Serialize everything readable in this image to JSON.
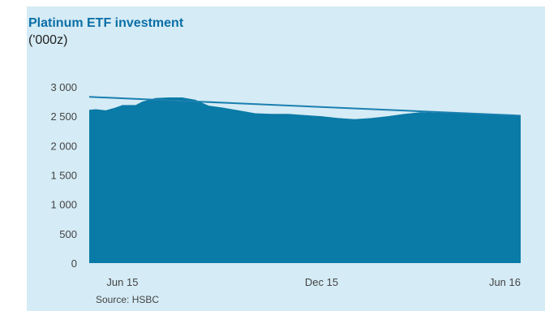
{
  "colors": {
    "panel_bg": "#d5ebf5",
    "area_fill": "#0a7aa6",
    "trend_line": "#1a7fb0",
    "title": "#0a6fa6"
  },
  "source": "Source: HSBC",
  "chart_data": {
    "type": "area",
    "title": "Platinum ETF investment",
    "subtitle": "('000z)",
    "xlabel": "",
    "ylabel": "",
    "ylim": [
      0,
      3000
    ],
    "yticks": [
      0,
      500,
      1000,
      1500,
      2000,
      2500,
      3000
    ],
    "ytick_labels": [
      "0",
      "500",
      "1 000",
      "1 500",
      "2 000",
      "2 500",
      "3 000"
    ],
    "xlim": [
      0,
      13
    ],
    "xtick_positions": [
      1,
      7,
      13
    ],
    "xtick_labels": [
      "Jun 15",
      "Dec 15",
      "Jun 16"
    ],
    "grid": false,
    "legend": "none",
    "series": [
      {
        "type": "area",
        "x": [
          0,
          0.2,
          0.5,
          0.8,
          1.0,
          1.4,
          1.6,
          2.0,
          2.4,
          2.8,
          3.2,
          3.6,
          4.0,
          4.5,
          5.0,
          5.5,
          6.0,
          6.5,
          7.0,
          7.5,
          8.0,
          8.5,
          9.0,
          9.5,
          10.0,
          10.5,
          11.0,
          11.5,
          12.0,
          12.5,
          13.0
        ],
        "values": [
          2610,
          2620,
          2600,
          2650,
          2690,
          2690,
          2750,
          2810,
          2820,
          2820,
          2780,
          2680,
          2650,
          2600,
          2550,
          2540,
          2540,
          2520,
          2500,
          2470,
          2450,
          2470,
          2500,
          2540,
          2570,
          2560,
          2550,
          2540,
          2530,
          2520,
          2510
        ]
      },
      {
        "type": "line",
        "x": [
          0,
          13
        ],
        "values": [
          2830,
          2510
        ]
      }
    ]
  }
}
